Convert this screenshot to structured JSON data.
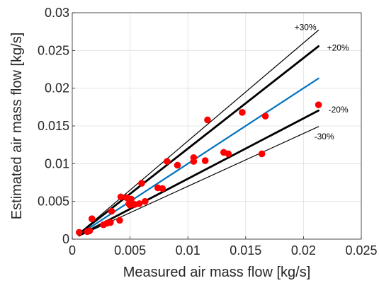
{
  "chart_data": {
    "type": "scatter",
    "title": "",
    "xlabel": "Measured air mass flow [kg/s]",
    "ylabel": "Estimated air mass flow [kg/s]",
    "xlim": [
      0,
      0.025
    ],
    "ylim": [
      0,
      0.03
    ],
    "xticks": [
      "0",
      "0.005",
      "0.01",
      "0.015",
      "0.02",
      "0.025"
    ],
    "yticks": [
      "0",
      "0.005",
      "0.01",
      "0.015",
      "0.02",
      "0.025",
      "0.03"
    ],
    "grid": true,
    "points": {
      "color": "#ff0000",
      "x": [
        0.0006,
        0.0013,
        0.0015,
        0.0017,
        0.0027,
        0.003,
        0.0033,
        0.0034,
        0.0041,
        0.0042,
        0.0047,
        0.0049,
        0.005,
        0.0051,
        0.0054,
        0.0058,
        0.006,
        0.0063,
        0.0074,
        0.0078,
        0.0082,
        0.0091,
        0.0105,
        0.0105,
        0.0115,
        0.0117,
        0.0131,
        0.0135,
        0.0147,
        0.0164,
        0.0167,
        0.0213
      ],
      "y": [
        0.0009,
        0.001,
        0.0011,
        0.0027,
        0.0019,
        0.0021,
        0.0022,
        0.0037,
        0.0025,
        0.0056,
        0.0055,
        0.0047,
        0.0045,
        0.0053,
        0.0046,
        0.0047,
        0.0074,
        0.005,
        0.0068,
        0.0067,
        0.0103,
        0.0098,
        0.0108,
        0.0103,
        0.0104,
        0.0158,
        0.0115,
        0.0113,
        0.0168,
        0.0113,
        0.0163,
        0.0178
      ]
    },
    "reference_lines": [
      {
        "label": "",
        "slope": 1.0,
        "x_start": 0.0006,
        "x_end": 0.0213,
        "color": "#0072bd",
        "width": "medium"
      },
      {
        "label": "+30%",
        "slope": 1.3,
        "x_start": 0.0006,
        "x_end": 0.0213,
        "color": "#000000",
        "width": "thin"
      },
      {
        "label": "+20%",
        "slope": 1.2,
        "x_start": 0.0006,
        "x_end": 0.0213,
        "color": "#000000",
        "width": "thick"
      },
      {
        "label": "-20%",
        "slope": 0.8,
        "x_start": 0.0006,
        "x_end": 0.0213,
        "color": "#000000",
        "width": "thick"
      },
      {
        "label": "-30%",
        "slope": 0.7,
        "x_start": 0.0006,
        "x_end": 0.0213,
        "color": "#000000",
        "width": "thin"
      }
    ]
  }
}
